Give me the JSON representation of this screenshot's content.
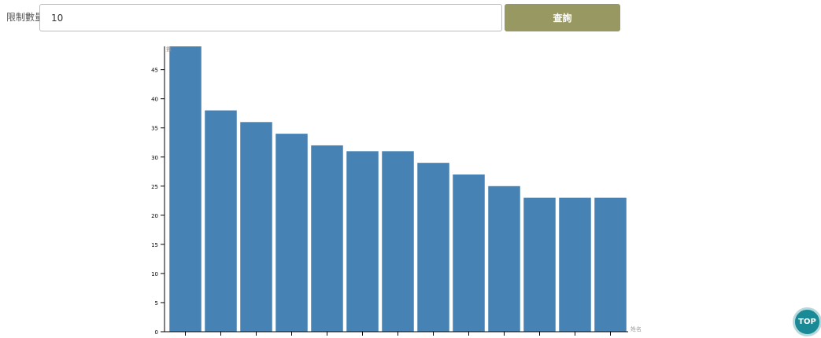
{
  "toolbar": {
    "limit_label": "限制數量",
    "limit_value": "10",
    "query_label": "查詢",
    "query_button_color": "#989862"
  },
  "chart_data": {
    "type": "bar",
    "bar_color": "#4682b4",
    "title": "",
    "xlabel": "姓名",
    "ylabel": "數",
    "ylim": [
      0,
      49
    ],
    "yticks": [
      0,
      5,
      10,
      15,
      20,
      25,
      30,
      35,
      40,
      45
    ],
    "categories": [
      "",
      "",
      "",
      "",
      "",
      "",
      "",
      "",
      "",
      "",
      "",
      "",
      ""
    ],
    "values": [
      49,
      38,
      36,
      34,
      32,
      31,
      31,
      29,
      27,
      25,
      23,
      23,
      23
    ]
  },
  "scroll_top": {
    "label": "TOP",
    "color": "#1a8a96"
  }
}
